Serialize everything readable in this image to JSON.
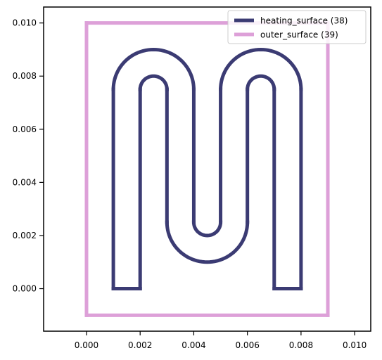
{
  "chart_data": {
    "type": "line",
    "xlim": [
      -0.0016,
      0.0106
    ],
    "ylim": [
      -0.0016,
      0.0106
    ],
    "xticks": [
      "0.000",
      "0.002",
      "0.004",
      "0.006",
      "0.008",
      "0.010"
    ],
    "yticks": [
      "0.000",
      "0.002",
      "0.004",
      "0.006",
      "0.008",
      "0.010"
    ],
    "xtick_values": [
      0,
      0.002,
      0.004,
      0.006,
      0.008,
      0.01
    ],
    "ytick_values": [
      0,
      0.002,
      0.004,
      0.006,
      0.008,
      0.01
    ],
    "grid": false,
    "legend": "top-right",
    "series": [
      {
        "name": "heating_surface (38)",
        "color": "#3b3b73",
        "segments": [
          {
            "kind": "line",
            "from": [
              0.001,
              0.0
            ],
            "to": [
              0.002,
              0.0
            ]
          },
          {
            "kind": "line",
            "from": [
              0.002,
              0.0
            ],
            "to": [
              0.002,
              0.0075
            ]
          },
          {
            "kind": "arc",
            "center": [
              0.0025,
              0.0075
            ],
            "radius": 0.0005,
            "start_deg": 180,
            "end_deg": 0
          },
          {
            "kind": "line",
            "from": [
              0.003,
              0.0075
            ],
            "to": [
              0.003,
              0.0025
            ]
          },
          {
            "kind": "arc",
            "center": [
              0.0045,
              0.0025
            ],
            "radius": 0.0015,
            "start_deg": 180,
            "end_deg": 360
          },
          {
            "kind": "line",
            "from": [
              0.006,
              0.0025
            ],
            "to": [
              0.006,
              0.0075
            ]
          },
          {
            "kind": "arc",
            "center": [
              0.0065,
              0.0075
            ],
            "radius": 0.0005,
            "start_deg": 180,
            "end_deg": 0
          },
          {
            "kind": "line",
            "from": [
              0.007,
              0.0075
            ],
            "to": [
              0.007,
              0.0
            ]
          },
          {
            "kind": "line",
            "from": [
              0.007,
              0.0
            ],
            "to": [
              0.008,
              0.0
            ]
          },
          {
            "kind": "line",
            "from": [
              0.008,
              0.0
            ],
            "to": [
              0.008,
              0.0075
            ]
          },
          {
            "kind": "arc",
            "center": [
              0.0065,
              0.0075
            ],
            "radius": 0.0015,
            "start_deg": 0,
            "end_deg": 180
          },
          {
            "kind": "line",
            "from": [
              0.005,
              0.0075
            ],
            "to": [
              0.005,
              0.0025
            ]
          },
          {
            "kind": "arc",
            "center": [
              0.0045,
              0.0025
            ],
            "radius": 0.0005,
            "start_deg": 360,
            "end_deg": 180
          },
          {
            "kind": "line",
            "from": [
              0.004,
              0.0025
            ],
            "to": [
              0.004,
              0.0075
            ]
          },
          {
            "kind": "arc",
            "center": [
              0.0025,
              0.0075
            ],
            "radius": 0.0015,
            "start_deg": 0,
            "end_deg": 180
          },
          {
            "kind": "line",
            "from": [
              0.001,
              0.0075
            ],
            "to": [
              0.001,
              0.0
            ]
          }
        ]
      },
      {
        "name": "outer_surface (39)",
        "color": "#dda0d8",
        "segments": [
          {
            "kind": "line",
            "from": [
              0.0,
              -0.001
            ],
            "to": [
              0.009,
              -0.001
            ]
          },
          {
            "kind": "line",
            "from": [
              0.009,
              -0.001
            ],
            "to": [
              0.009,
              0.01
            ]
          },
          {
            "kind": "line",
            "from": [
              0.009,
              0.01
            ],
            "to": [
              0.0,
              0.01
            ]
          },
          {
            "kind": "line",
            "from": [
              0.0,
              0.01
            ],
            "to": [
              0.0,
              -0.001
            ]
          }
        ]
      }
    ]
  }
}
